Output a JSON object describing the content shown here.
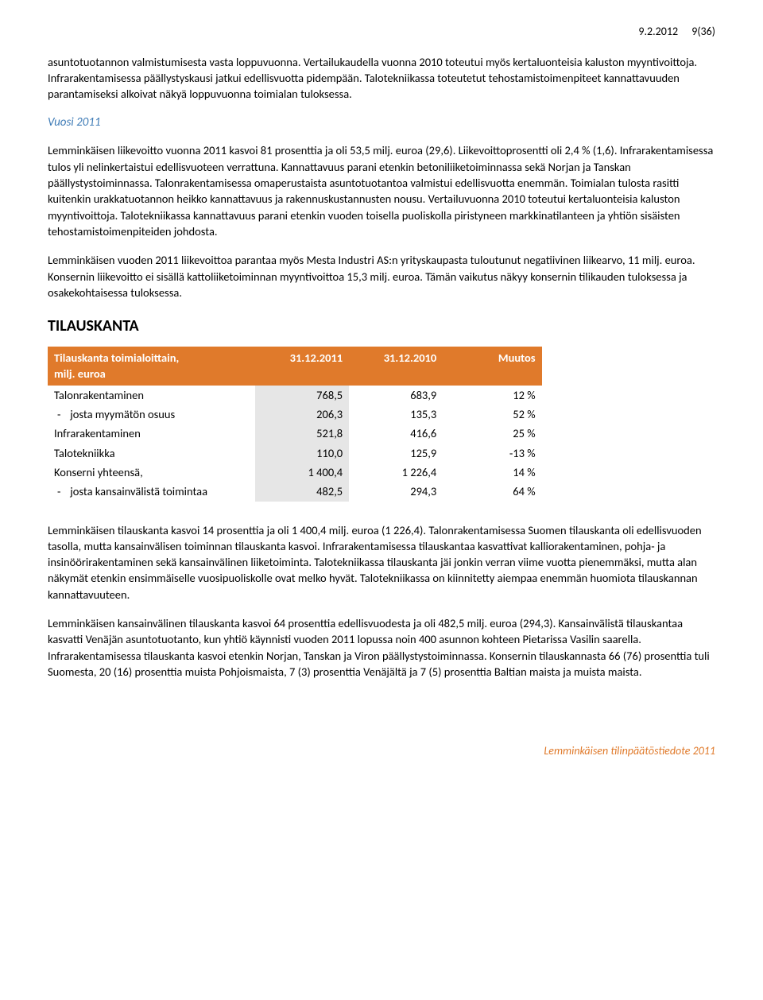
{
  "header": {
    "date": "9.2.2012",
    "pagenum": "9(36)"
  },
  "para1": "asuntotuotannon valmistumisesta vasta loppuvuonna. Vertailukaudella vuonna 2010 toteutui myös kertaluonteisia kaluston myyntivoittoja. Infrarakentamisessa päällystyskausi jatkui edellisvuotta pidempään. Talotekniikassa toteutetut tehostamistoimenpiteet kannattavuuden parantamiseksi alkoivat näkyä loppuvuonna toimialan tuloksessa.",
  "section_vuosi": "Vuosi 2011",
  "para2": "Lemminkäisen liikevoitto vuonna 2011 kasvoi 81 prosenttia ja oli 53,5 milj. euroa (29,6). Liikevoittoprosentti oli 2,4 % (1,6). Infrarakentamisessa tulos yli nelinkertaistui edellisvuoteen verrattuna. Kannattavuus parani etenkin betoniliiketoiminnassa sekä Norjan ja Tanskan päällystystoiminnassa. Talonrakentamisessa omaperustaista asuntotuotantoa valmistui edellisvuotta enemmän. Toimialan tulosta rasitti kuitenkin urakkatuotannon heikko kannattavuus ja rakennuskustannusten nousu. Vertailuvuonna 2010 toteutui kertaluonteisia kaluston myyntivoittoja. Talotekniikassa kannattavuus parani etenkin vuoden toisella puoliskolla piristyneen markkinatilanteen ja yhtiön sisäisten tehostamistoimenpiteiden johdosta.",
  "para3": "Lemminkäisen vuoden 2011 liikevoittoa parantaa myös Mesta Industri AS:n yrityskaupasta tuloutunut negatiivinen liikearvo, 11 milj. euroa. Konsernin liikevoitto ei sisällä kattoliiketoiminnan myyntivoittoa 15,3 milj. euroa. Tämän vaikutus näkyy konsernin tilikauden tuloksessa ja osakekohtaisessa tuloksessa.",
  "heading_tilauskanta": "TILAUSKANTA",
  "table": {
    "header": {
      "col0_line1": "Tilauskanta toimialoittain,",
      "col0_line2": "milj. euroa",
      "col1": "31.12.2011",
      "col2": "31.12.2010",
      "col3": "Muutos"
    },
    "rows": [
      {
        "label": "Talonrakentaminen",
        "indent": false,
        "c1": "768,5",
        "c2": "683,9",
        "c3": "12 %"
      },
      {
        "label": "josta myymätön osuus",
        "indent": true,
        "c1": "206,3",
        "c2": "135,3",
        "c3": "52 %"
      },
      {
        "label": "Infrarakentaminen",
        "indent": false,
        "c1": "521,8",
        "c2": "416,6",
        "c3": "25 %"
      },
      {
        "label": "Talotekniikka",
        "indent": false,
        "c1": "110,0",
        "c2": "125,9",
        "c3": "-13 %"
      },
      {
        "label": "Konserni yhteensä,",
        "indent": false,
        "c1": "1 400,4",
        "c2": "1 226,4",
        "c3": "14 %"
      },
      {
        "label": "josta kansainvälistä toimintaa",
        "indent": true,
        "c1": "482,5",
        "c2": "294,3",
        "c3": "64 %"
      }
    ],
    "colors": {
      "header_bg": "#e07a2b",
      "header_fg": "#ffffff",
      "shade_bg": "#e6e6e6"
    }
  },
  "para4": "Lemminkäisen tilauskanta kasvoi 14 prosenttia ja oli 1 400,4 milj. euroa (1 226,4). Talonrakentamisessa Suomen tilauskanta oli edellisvuoden tasolla, mutta kansainvälisen toiminnan tilauskanta kasvoi. Infrarakentamisessa tilauskantaa kasvattivat kalliorakentaminen, pohja- ja insinöörirakentaminen sekä kansainvälinen liiketoiminta. Talotekniikassa tilauskanta jäi jonkin verran viime vuotta pienemmäksi, mutta alan näkymät etenkin ensimmäiselle vuosipuoliskolle ovat melko hyvät. Talotekniikassa on kiinnitetty aiempaa enemmän huomiota tilauskannan kannattavuuteen.",
  "para5": "Lemminkäisen kansainvälinen tilauskanta kasvoi 64 prosenttia edellisvuodesta ja oli 482,5 milj. euroa (294,3). Kansainvälistä tilauskantaa kasvatti Venäjän asuntotuotanto, kun yhtiö käynnisti vuoden 2011 lopussa noin 400 asunnon kohteen Pietarissa Vasilin saarella. Infrarakentamisessa tilauskanta kasvoi etenkin Norjan, Tanskan ja Viron päällystystoiminnassa. Konsernin tilauskannasta 66 (76) prosenttia tuli Suomesta, 20 (16) prosenttia muista Pohjoismaista, 7 (3) prosenttia Venäjältä ja 7 (5) prosenttia Baltian maista ja muista maista.",
  "footer": "Lemminkäisen tilinpäätöstiedote 2011"
}
